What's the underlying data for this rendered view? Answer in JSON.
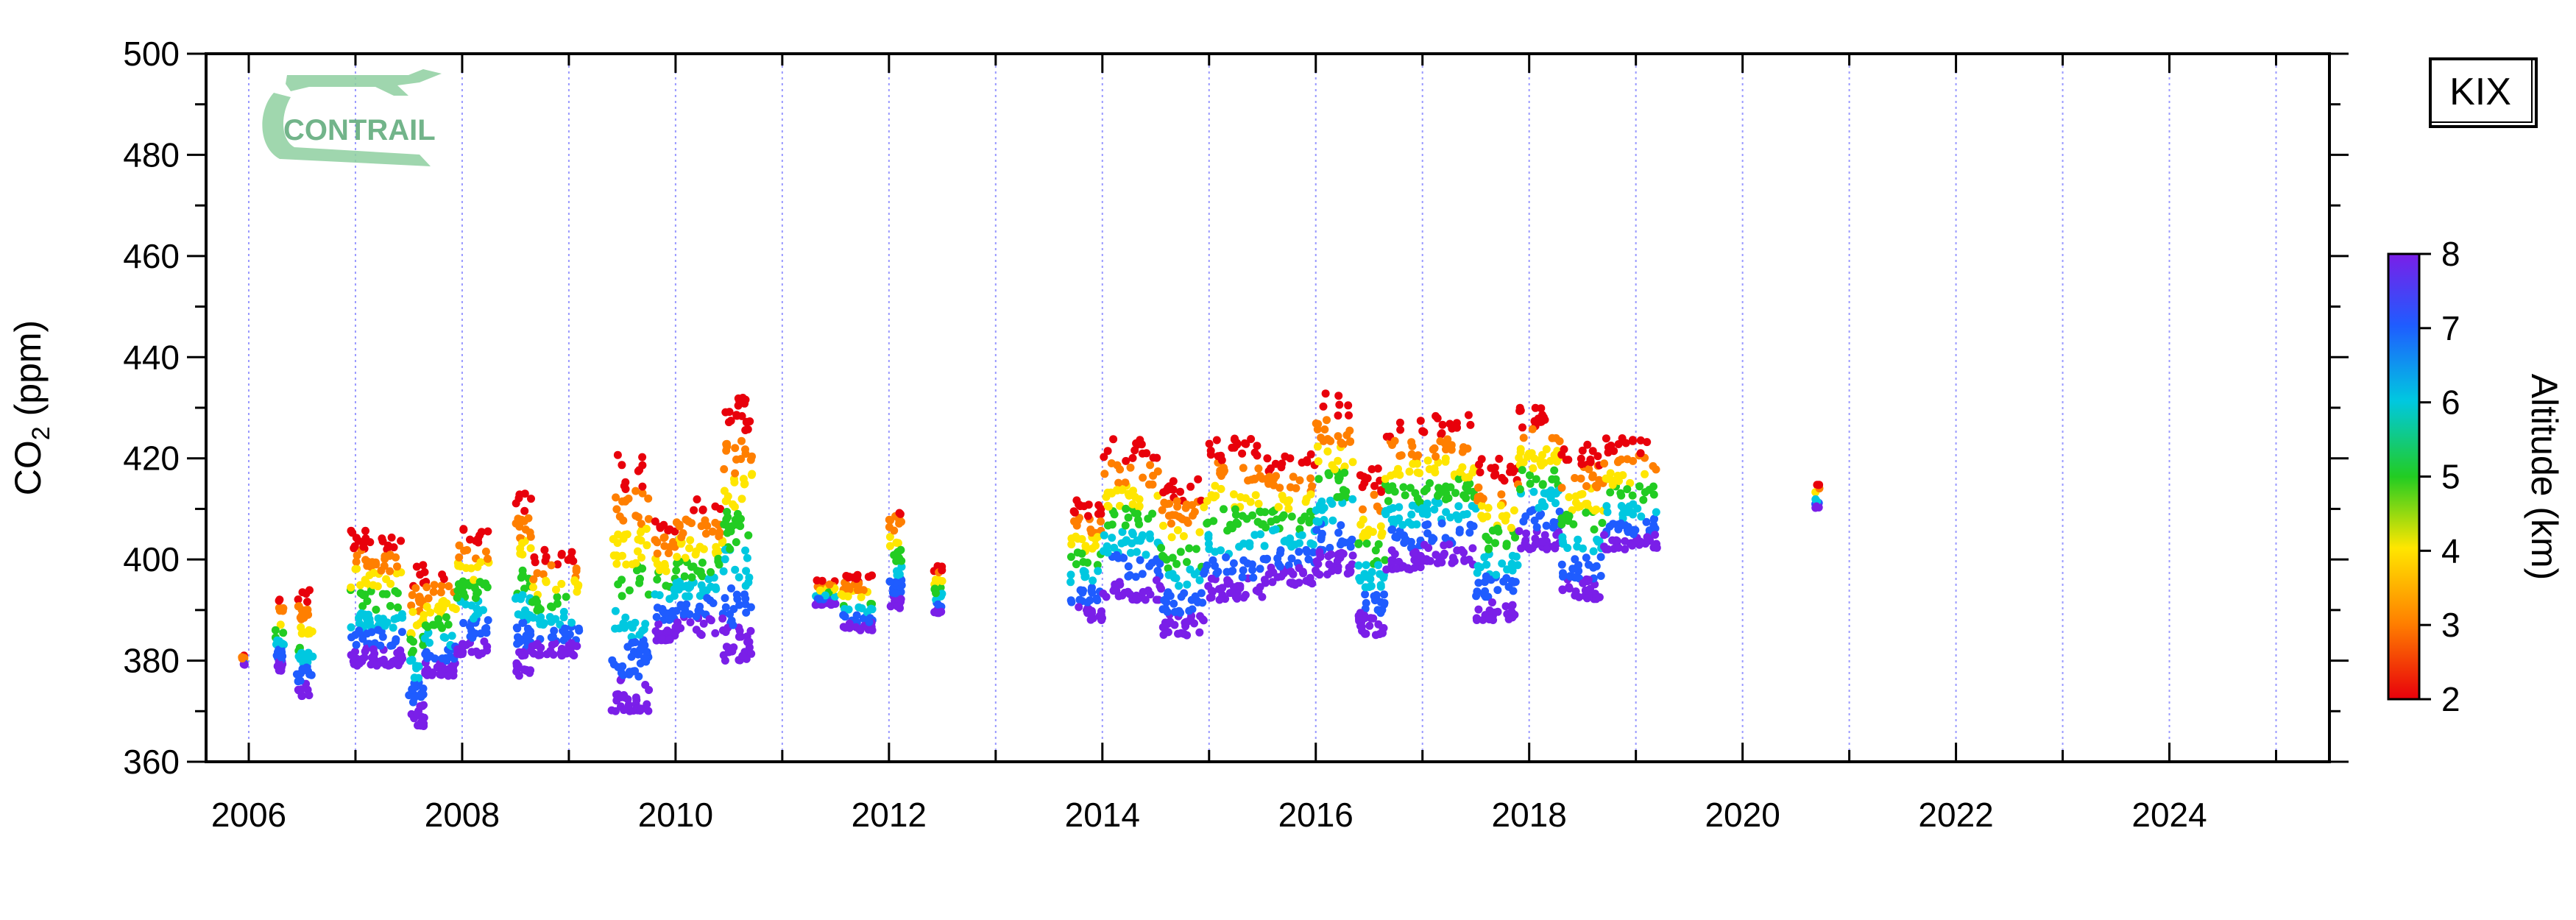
{
  "chart_data": {
    "type": "scatter",
    "title": "",
    "station": "KIX",
    "logo_text": "CONTRAIL",
    "ylabel_prefix": "CO",
    "ylabel_sub": "2",
    "ylabel_suffix": " (ppm)",
    "ylim": [
      360,
      500
    ],
    "xlim": [
      2005.6,
      2025.5
    ],
    "yticks": [
      360,
      380,
      400,
      420,
      440,
      460,
      480,
      500
    ],
    "xticks": [
      2006,
      2008,
      2010,
      2012,
      2014,
      2016,
      2018,
      2020,
      2022,
      2024
    ],
    "grid": "vertical dotted lines at year boundaries",
    "colorbar": {
      "label": "Altitude (km)",
      "range": [
        2,
        8
      ],
      "ticks": [
        2,
        3,
        4,
        5,
        6,
        7,
        8
      ],
      "colors": [
        "#e8000b",
        "#ff7f00",
        "#ffe600",
        "#22cc22",
        "#00c8e0",
        "#1f5cff",
        "#7a1fe8"
      ]
    },
    "clusters": [
      {
        "x": [
          2005.93,
          2005.97
        ],
        "lo": 379,
        "hi": 381
      },
      {
        "x": [
          2006.25,
          2006.33
        ],
        "lo": 378,
        "hi": 393
      },
      {
        "x": [
          2006.45,
          2006.6
        ],
        "lo": 373,
        "hi": 394
      },
      {
        "x": [
          2006.95,
          2007.15
        ],
        "lo": 379,
        "hi": 406
      },
      {
        "x": [
          2007.15,
          2007.45
        ],
        "lo": 379,
        "hi": 405
      },
      {
        "x": [
          2007.5,
          2007.65
        ],
        "lo": 367,
        "hi": 399
      },
      {
        "x": [
          2007.65,
          2007.95
        ],
        "lo": 377,
        "hi": 398
      },
      {
        "x": [
          2007.95,
          2008.25
        ],
        "lo": 381,
        "hi": 407
      },
      {
        "x": [
          2008.5,
          2008.65
        ],
        "lo": 377,
        "hi": 415
      },
      {
        "x": [
          2008.65,
          2009.1
        ],
        "lo": 381,
        "hi": 402
      },
      {
        "x": [
          2009.4,
          2009.75
        ],
        "lo": 370,
        "hi": 421
      },
      {
        "x": [
          2009.8,
          2010.0
        ],
        "lo": 384,
        "hi": 408
      },
      {
        "x": [
          2010.0,
          2010.45
        ],
        "lo": 385,
        "hi": 412
      },
      {
        "x": [
          2010.45,
          2010.72
        ],
        "lo": 380,
        "hi": 432
      },
      {
        "x": [
          2011.3,
          2011.5
        ],
        "lo": 391,
        "hi": 396
      },
      {
        "x": [
          2011.55,
          2011.85
        ],
        "lo": 386,
        "hi": 397
      },
      {
        "x": [
          2012.0,
          2012.12
        ],
        "lo": 390,
        "hi": 412
      },
      {
        "x": [
          2012.42,
          2012.5
        ],
        "lo": 389,
        "hi": 399
      },
      {
        "x": [
          2013.7,
          2014.0
        ],
        "lo": 388,
        "hi": 412
      },
      {
        "x": [
          2014.0,
          2014.55
        ],
        "lo": 392,
        "hi": 424
      },
      {
        "x": [
          2014.55,
          2014.95
        ],
        "lo": 385,
        "hi": 416
      },
      {
        "x": [
          2014.95,
          2015.5
        ],
        "lo": 392,
        "hi": 424
      },
      {
        "x": [
          2015.5,
          2016.0
        ],
        "lo": 395,
        "hi": 421
      },
      {
        "x": [
          2016.0,
          2016.35
        ],
        "lo": 397,
        "hi": 433
      },
      {
        "x": [
          2016.4,
          2016.65
        ],
        "lo": 385,
        "hi": 418
      },
      {
        "x": [
          2016.65,
          2017.0
        ],
        "lo": 398,
        "hi": 428
      },
      {
        "x": [
          2017.0,
          2017.5
        ],
        "lo": 399,
        "hi": 429
      },
      {
        "x": [
          2017.5,
          2017.9
        ],
        "lo": 388,
        "hi": 420
      },
      {
        "x": [
          2017.9,
          2018.3
        ],
        "lo": 402,
        "hi": 430
      },
      {
        "x": [
          2018.3,
          2018.7
        ],
        "lo": 392,
        "hi": 423
      },
      {
        "x": [
          2018.7,
          2019.2
        ],
        "lo": 402,
        "hi": 424
      },
      {
        "x": [
          2020.68,
          2020.73
        ],
        "lo": 410,
        "hi": 415
      }
    ]
  }
}
